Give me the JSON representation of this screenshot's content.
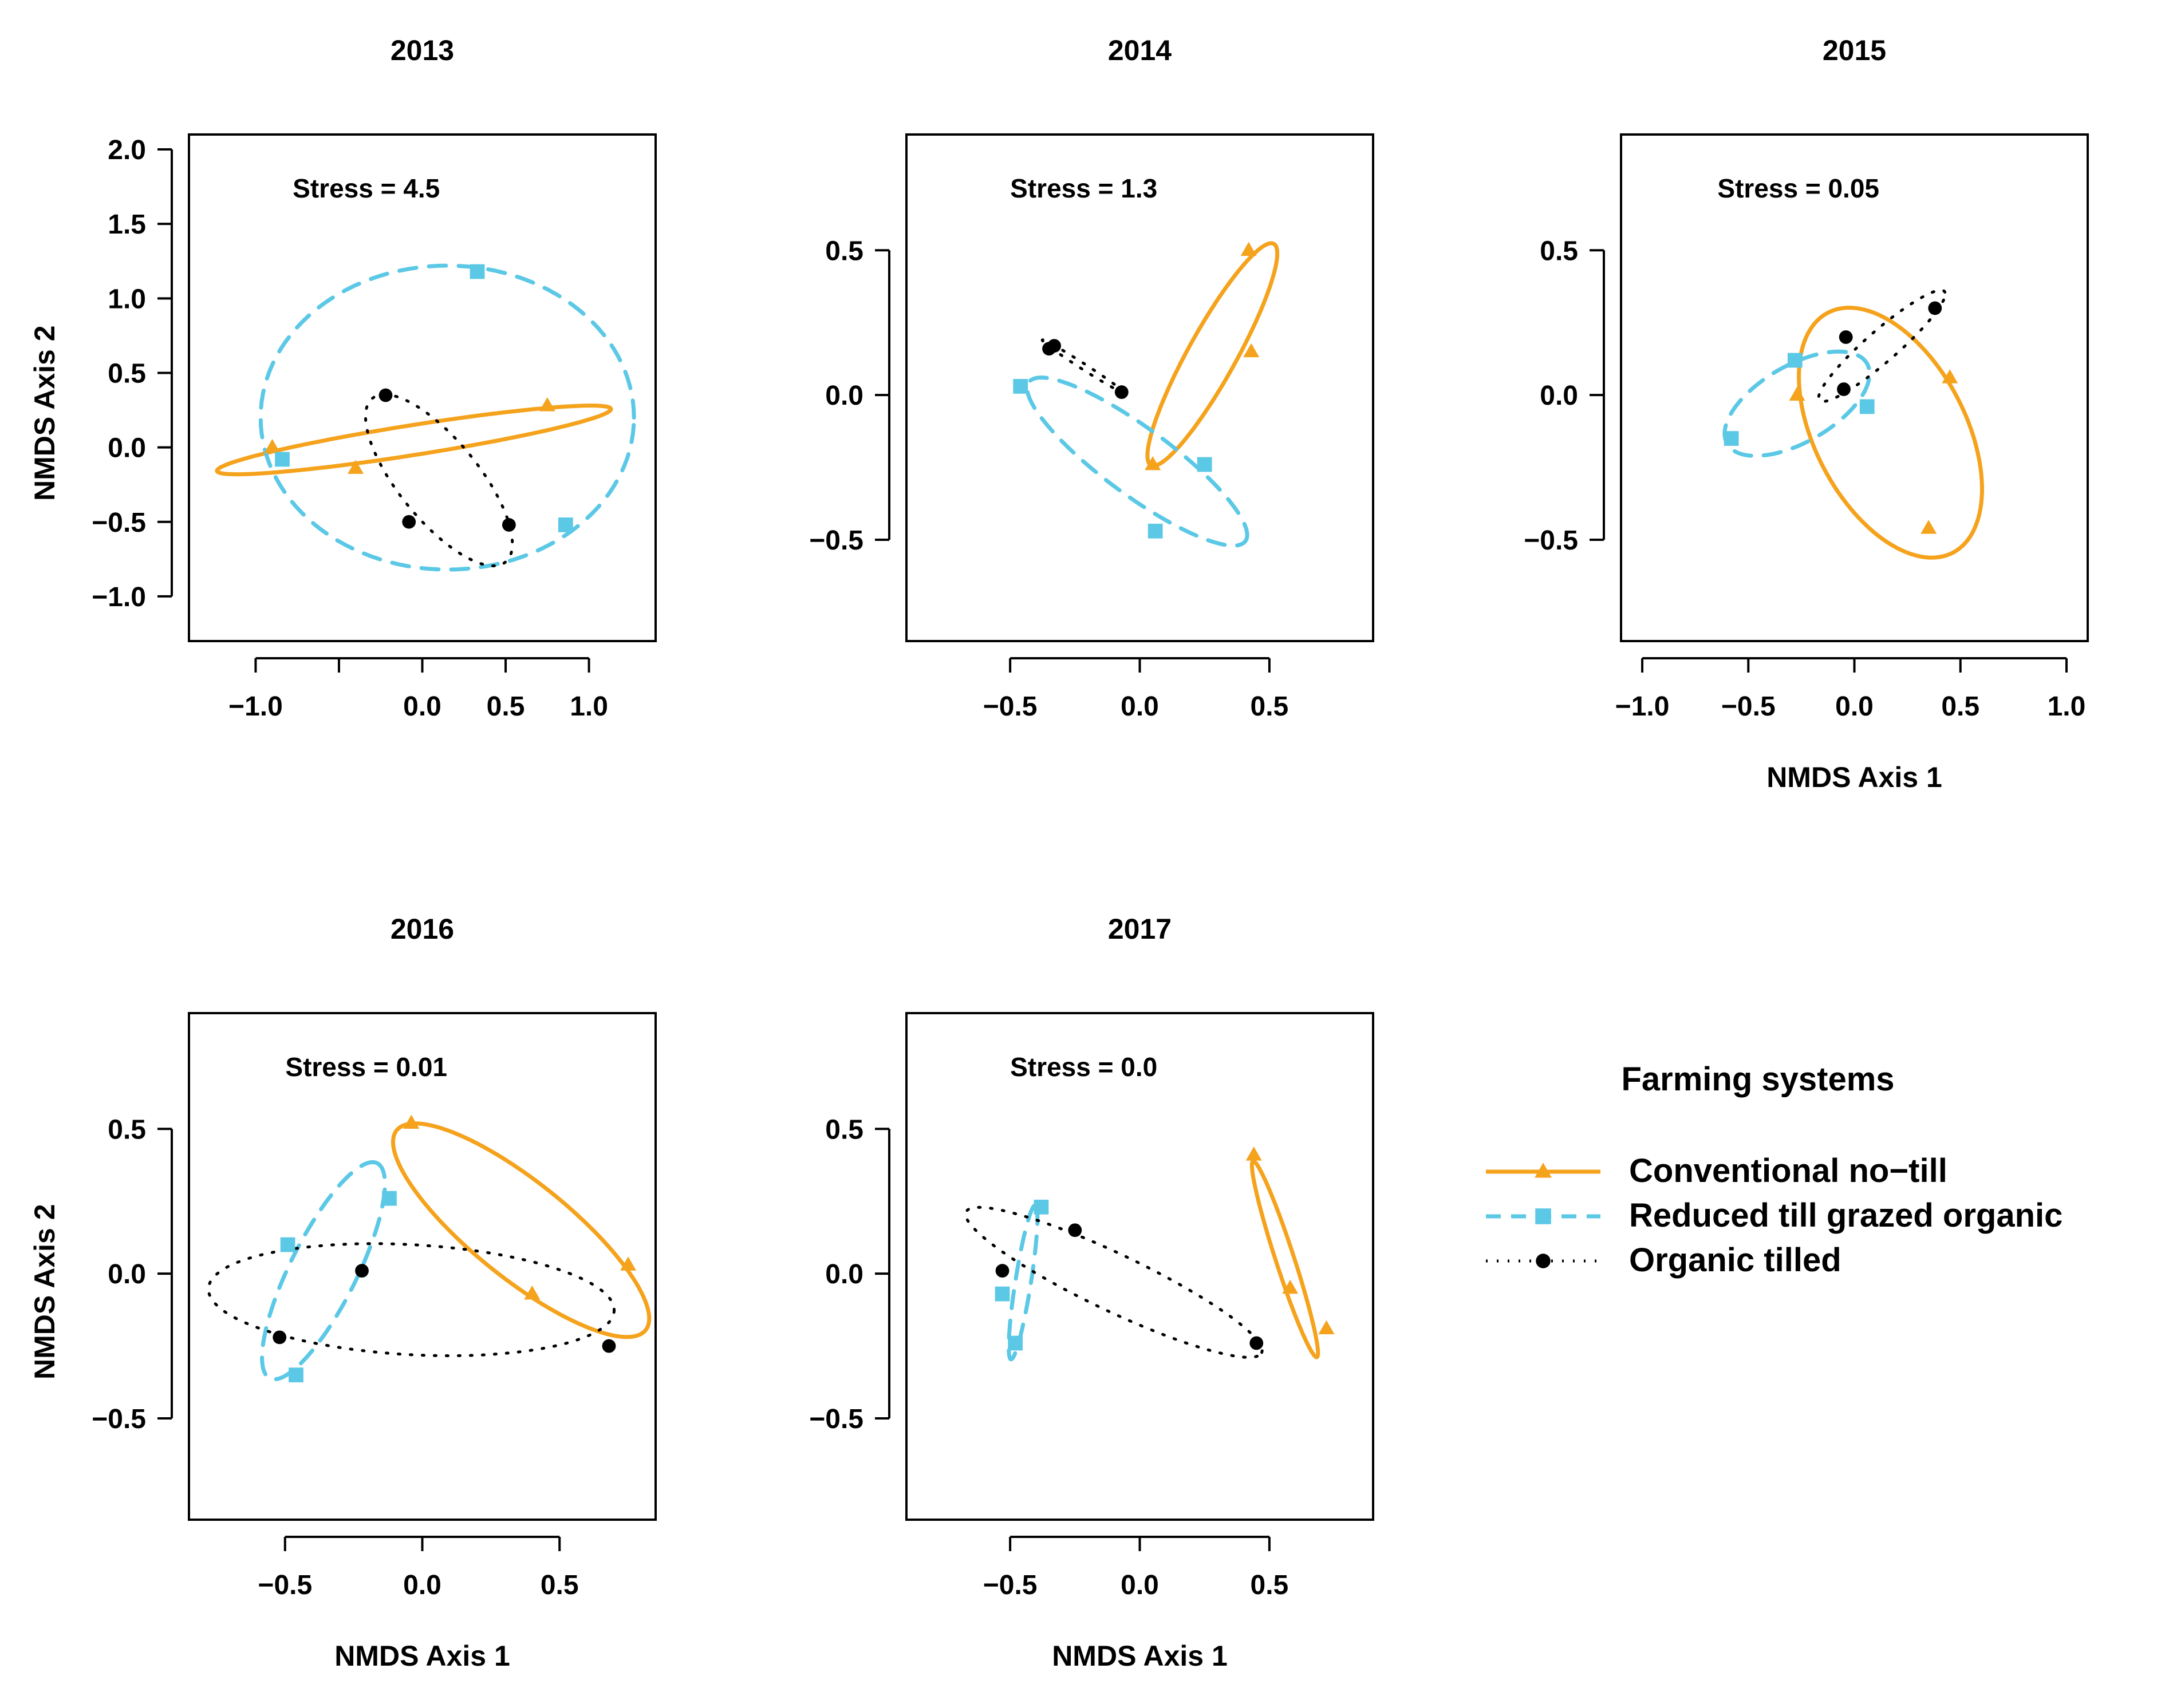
{
  "colors": {
    "conventional": "#F5A21C",
    "reduced": "#5BC8E6",
    "organic": "#000000"
  },
  "legend": {
    "title": "Farming systems",
    "entries": [
      {
        "key": "conventional",
        "label": "Conventional no−till"
      },
      {
        "key": "reduced",
        "label": "Reduced till grazed organic"
      },
      {
        "key": "organic",
        "label": "Organic tilled"
      }
    ]
  },
  "chart_data": [
    {
      "type": "scatter",
      "title": "2013",
      "stress": "Stress = 4.5",
      "xlim": [
        -1.4,
        1.4
      ],
      "ylim": [
        -1.3,
        2.1
      ],
      "xticks": [
        -1.0,
        -0.5,
        0.0,
        0.5,
        1.0
      ],
      "xtick_labels": [
        "−1.0",
        "",
        "0.0",
        "0.5",
        "1.0"
      ],
      "yticks": [
        -1.0,
        -0.5,
        0.0,
        0.5,
        1.0,
        1.5,
        2.0
      ],
      "ytick_labels": [
        "−1.0",
        "−0.5",
        "0.0",
        "0.5",
        "1.0",
        "1.5",
        "2.0"
      ],
      "xlabel": "",
      "ylabel": "NMDS Axis 2",
      "series": [
        {
          "name": "Conventional no−till",
          "key": "conventional",
          "marker": "triangle",
          "points": [
            [
              -0.9,
              0.0
            ],
            [
              -0.4,
              -0.14
            ],
            [
              0.75,
              0.28
            ]
          ],
          "ellipse": {
            "cx": -0.05,
            "cy": 0.05,
            "rx": 1.2,
            "ry": 0.1,
            "angle": 10
          }
        },
        {
          "name": "Reduced till grazed organic",
          "key": "reduced",
          "marker": "square",
          "points": [
            [
              -0.84,
              -0.08
            ],
            [
              0.33,
              1.18
            ],
            [
              0.86,
              -0.52
            ]
          ],
          "ellipse": {
            "cx": 0.15,
            "cy": 0.2,
            "rx": 1.12,
            "ry": 1.02,
            "angle": 0
          }
        },
        {
          "name": "Organic tilled",
          "key": "organic",
          "marker": "circle",
          "points": [
            [
              -0.22,
              0.35
            ],
            [
              -0.08,
              -0.5
            ],
            [
              0.52,
              -0.52
            ]
          ],
          "ellipse": {
            "cx": 0.1,
            "cy": -0.22,
            "rx": 0.68,
            "ry": 0.25,
            "angle": -55
          }
        }
      ]
    },
    {
      "type": "scatter",
      "title": "2014",
      "stress": "Stress = 1.3",
      "xlim": [
        -0.9,
        0.9
      ],
      "ylim": [
        -0.85,
        0.9
      ],
      "xticks": [
        -0.5,
        0.0,
        0.5
      ],
      "xtick_labels": [
        "−0.5",
        "0.0",
        "0.5"
      ],
      "yticks": [
        -0.5,
        0.0,
        0.5
      ],
      "ytick_labels": [
        "−0.5",
        "0.0",
        "0.5"
      ],
      "xlabel": "",
      "ylabel": "",
      "series": [
        {
          "name": "Conventional no−till",
          "key": "conventional",
          "marker": "triangle",
          "points": [
            [
              0.05,
              -0.24
            ],
            [
              0.43,
              0.15
            ],
            [
              0.42,
              0.5
            ]
          ],
          "ellipse": {
            "cx": 0.28,
            "cy": 0.14,
            "rx": 0.45,
            "ry": 0.09,
            "angle": 58
          }
        },
        {
          "name": "Reduced till grazed organic",
          "key": "reduced",
          "marker": "square",
          "points": [
            [
              -0.46,
              0.03
            ],
            [
              0.06,
              -0.47
            ],
            [
              0.25,
              -0.24
            ]
          ],
          "ellipse": {
            "cx": -0.01,
            "cy": -0.23,
            "rx": 0.5,
            "ry": 0.12,
            "angle": -33
          }
        },
        {
          "name": "Organic tilled",
          "key": "organic",
          "marker": "circle",
          "points": [
            [
              -0.35,
              0.16
            ],
            [
              -0.33,
              0.17
            ],
            [
              -0.07,
              0.01
            ]
          ],
          "ellipse": {
            "cx": -0.22,
            "cy": 0.1,
            "rx": 0.18,
            "ry": 0.01,
            "angle": -30
          }
        }
      ]
    },
    {
      "type": "scatter",
      "title": "2015",
      "stress": "Stress = 0.05",
      "xlim": [
        -1.1,
        1.1
      ],
      "ylim": [
        -0.85,
        0.9
      ],
      "xticks": [
        -1.0,
        -0.5,
        0.0,
        0.5,
        1.0
      ],
      "xtick_labels": [
        "−1.0",
        "−0.5",
        "0.0",
        "0.5",
        "1.0"
      ],
      "yticks": [
        -0.5,
        0.0,
        0.5
      ],
      "ytick_labels": [
        "−0.5",
        "0.0",
        "0.5"
      ],
      "xlabel": "NMDS Axis 1",
      "ylabel": "",
      "series": [
        {
          "name": "Conventional no−till",
          "key": "conventional",
          "marker": "triangle",
          "points": [
            [
              -0.27,
              0.0
            ],
            [
              0.35,
              -0.46
            ],
            [
              0.45,
              0.06
            ]
          ],
          "ellipse": {
            "cx": 0.17,
            "cy": -0.13,
            "rx": 0.52,
            "ry": 0.32,
            "angle": -45
          }
        },
        {
          "name": "Reduced till grazed organic",
          "key": "reduced",
          "marker": "square",
          "points": [
            [
              -0.28,
              0.12
            ],
            [
              -0.58,
              -0.15
            ],
            [
              0.06,
              -0.04
            ]
          ],
          "ellipse": {
            "cx": -0.27,
            "cy": -0.03,
            "rx": 0.36,
            "ry": 0.14,
            "angle": 20
          }
        },
        {
          "name": "Organic tilled",
          "key": "organic",
          "marker": "circle",
          "points": [
            [
              -0.04,
              0.2
            ],
            [
              -0.05,
              0.02
            ],
            [
              0.38,
              0.3
            ]
          ],
          "ellipse": {
            "cx": 0.13,
            "cy": 0.17,
            "rx": 0.35,
            "ry": 0.06,
            "angle": 32
          }
        }
      ]
    },
    {
      "type": "scatter",
      "title": "2016",
      "stress": "Stress = 0.01",
      "xlim": [
        -0.85,
        0.85
      ],
      "ylim": [
        -0.85,
        0.9
      ],
      "xticks": [
        -0.5,
        0.0,
        0.5
      ],
      "xtick_labels": [
        "−0.5",
        "0.0",
        "0.5"
      ],
      "yticks": [
        -0.5,
        0.0,
        0.5
      ],
      "ytick_labels": [
        "−0.5",
        "0.0",
        "0.5"
      ],
      "xlabel": "NMDS Axis 1",
      "ylabel": "NMDS Axis 2",
      "series": [
        {
          "name": "Conventional no−till",
          "key": "conventional",
          "marker": "triangle",
          "points": [
            [
              -0.04,
              0.52
            ],
            [
              0.4,
              -0.07
            ],
            [
              0.75,
              0.03
            ]
          ],
          "ellipse": {
            "cx": 0.36,
            "cy": 0.15,
            "rx": 0.57,
            "ry": 0.17,
            "angle": -37
          }
        },
        {
          "name": "Reduced till grazed organic",
          "key": "reduced",
          "marker": "square",
          "points": [
            [
              -0.49,
              0.1
            ],
            [
              -0.46,
              -0.35
            ],
            [
              -0.12,
              0.26
            ]
          ],
          "ellipse": {
            "cx": -0.36,
            "cy": 0.01,
            "rx": 0.42,
            "ry": 0.12,
            "angle": 62
          }
        },
        {
          "name": "Organic tilled",
          "key": "organic",
          "marker": "circle",
          "points": [
            [
              -0.52,
              -0.22
            ],
            [
              -0.22,
              0.01
            ],
            [
              0.68,
              -0.25
            ]
          ],
          "ellipse": {
            "cx": -0.04,
            "cy": -0.09,
            "rx": 0.74,
            "ry": 0.19,
            "angle": -3
          }
        }
      ]
    },
    {
      "type": "scatter",
      "title": "2017",
      "stress": "Stress = 0.0",
      "xlim": [
        -0.9,
        0.9
      ],
      "ylim": [
        -0.85,
        0.9
      ],
      "xticks": [
        -0.5,
        0.0,
        0.5
      ],
      "xtick_labels": [
        "−0.5",
        "0.0",
        "0.5"
      ],
      "yticks": [
        -0.5,
        0.0,
        0.5
      ],
      "ytick_labels": [
        "−0.5",
        "0.0",
        "0.5"
      ],
      "xlabel": "NMDS Axis 1",
      "ylabel": "",
      "series": [
        {
          "name": "Conventional no−till",
          "key": "conventional",
          "marker": "triangle",
          "points": [
            [
              0.44,
              0.41
            ],
            [
              0.58,
              -0.05
            ],
            [
              0.72,
              -0.19
            ]
          ],
          "ellipse": {
            "cx": 0.56,
            "cy": 0.05,
            "rx": 0.36,
            "ry": 0.035,
            "angle": -70
          }
        },
        {
          "name": "Reduced till grazed organic",
          "key": "reduced",
          "marker": "square",
          "points": [
            [
              -0.53,
              -0.07
            ],
            [
              -0.48,
              -0.24
            ],
            [
              -0.38,
              0.23
            ]
          ],
          "ellipse": {
            "cx": -0.45,
            "cy": -0.03,
            "rx": 0.27,
            "ry": 0.03,
            "angle": 80
          }
        },
        {
          "name": "Organic tilled",
          "key": "organic",
          "marker": "circle",
          "points": [
            [
              -0.53,
              0.01
            ],
            [
              -0.25,
              0.15
            ],
            [
              0.45,
              -0.24
            ]
          ],
          "ellipse": {
            "cx": -0.1,
            "cy": -0.03,
            "rx": 0.62,
            "ry": 0.1,
            "angle": -23
          }
        }
      ]
    }
  ]
}
